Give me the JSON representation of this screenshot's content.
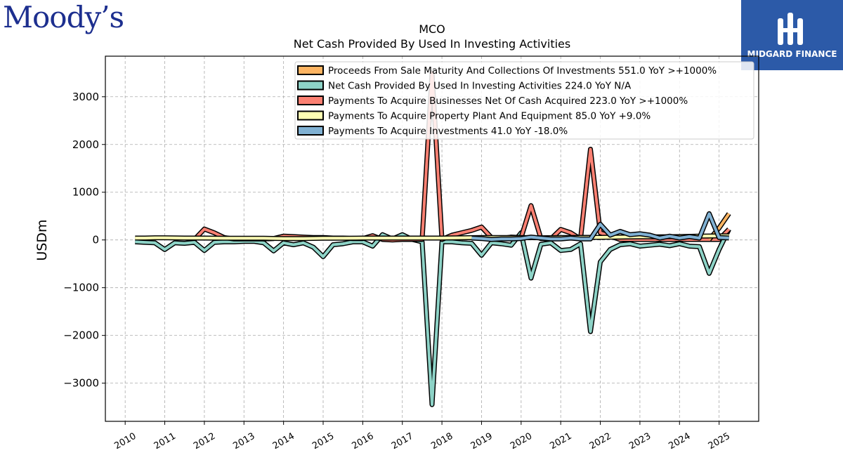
{
  "brand": {
    "left_logo": "Moody’s",
    "right_logo": "MIDGARD FINANCE"
  },
  "colors": {
    "proceeds": "#fdb462",
    "net_cash": "#8dd3c7",
    "acquire_businesses": "#fb8072",
    "ppe": "#ffffb3",
    "investments": "#80b1d3"
  },
  "chart_data": {
    "type": "line",
    "title": "MCO",
    "subtitle": "Net Cash Provided By Used In Investing Activities",
    "ylabel": "USDm",
    "xlabel": "",
    "ylim": [
      -3800,
      3850
    ],
    "xlim": [
      2009.5,
      2026.0
    ],
    "yticks": [
      -3000,
      -2000,
      -1000,
      0,
      1000,
      2000,
      3000
    ],
    "ytick_labels": [
      "−3000",
      "−2000",
      "−1000",
      "0",
      "1000",
      "2000",
      "3000"
    ],
    "xticks": [
      2010,
      2011,
      2012,
      2013,
      2014,
      2015,
      2016,
      2017,
      2018,
      2019,
      2020,
      2021,
      2022,
      2023,
      2024,
      2025
    ],
    "xtick_labels": [
      "2010",
      "2011",
      "2012",
      "2013",
      "2014",
      "2015",
      "2016",
      "2017",
      "2018",
      "2019",
      "2020",
      "2021",
      "2022",
      "2023",
      "2024",
      "2025"
    ],
    "grid": true,
    "legend_position": "top-right",
    "series": [
      {
        "key": "proceeds",
        "legend": "Proceeds From Sale Maturity And Collections Of Investments  551.0 YoY >+1000%",
        "x": [
          2024.75,
          2025.0,
          2025.25
        ],
        "y": [
          10,
          250,
          551
        ]
      },
      {
        "key": "net_cash",
        "legend": "Net Cash Provided By Used In Investing Activities  224.0 YoY N/A",
        "x": [
          2010.25,
          2010.5,
          2010.75,
          2011.0,
          2011.25,
          2011.5,
          2011.75,
          2012.0,
          2012.25,
          2012.5,
          2012.75,
          2013.0,
          2013.25,
          2013.5,
          2013.75,
          2014.0,
          2014.25,
          2014.5,
          2014.75,
          2015.0,
          2015.25,
          2015.5,
          2015.75,
          2016.0,
          2016.25,
          2016.5,
          2016.75,
          2017.0,
          2017.25,
          2017.5,
          2017.75,
          2018.0,
          2018.25,
          2018.5,
          2018.75,
          2019.0,
          2019.25,
          2019.5,
          2019.75,
          2020.0,
          2020.25,
          2020.5,
          2020.75,
          2021.0,
          2021.25,
          2021.5,
          2021.75,
          2022.0,
          2022.25,
          2022.5,
          2022.75,
          2023.0,
          2023.25,
          2023.5,
          2023.75,
          2024.0,
          2024.25,
          2024.5,
          2024.75,
          2025.0,
          2025.25
        ],
        "y": [
          -40,
          -50,
          -60,
          -200,
          -60,
          -70,
          -50,
          -220,
          -50,
          -40,
          -40,
          -30,
          -30,
          -60,
          -230,
          -60,
          -100,
          -60,
          -150,
          -350,
          -100,
          -80,
          -40,
          -40,
          -130,
          110,
          20,
          110,
          10,
          -40,
          -3450,
          -40,
          -40,
          -60,
          -70,
          -320,
          -60,
          -80,
          -110,
          150,
          -800,
          -90,
          -60,
          -220,
          -200,
          -80,
          -1920,
          -460,
          -200,
          -100,
          -80,
          -130,
          -110,
          -90,
          -120,
          -80,
          -130,
          -140,
          -700,
          -200,
          224
        ]
      },
      {
        "key": "acquire_businesses",
        "legend": "Payments To Acquire Businesses Net Of Cash Acquired  223.0 YoY >+1000%",
        "x": [
          2011.75,
          2012.0,
          2012.25,
          2012.5,
          2012.75,
          2013.0,
          2013.25,
          2013.5,
          2013.75,
          2014.0,
          2014.25,
          2014.5,
          2014.75,
          2015.0,
          2015.25,
          2015.5,
          2015.75,
          2016.0,
          2016.25,
          2016.5,
          2016.75,
          2017.0,
          2017.25,
          2017.5,
          2017.75,
          2018.0,
          2018.25,
          2018.5,
          2018.75,
          2019.0,
          2019.25,
          2019.5,
          2019.75,
          2020.0,
          2020.25,
          2020.5,
          2020.75,
          2021.0,
          2021.25,
          2021.5,
          2021.75,
          2022.0,
          2022.25,
          2022.5,
          2022.75,
          2023.0,
          2023.25,
          2023.5,
          2023.75,
          2024.0,
          2024.25,
          2024.5,
          2024.75,
          2025.0,
          2025.25
        ],
        "y": [
          10,
          230,
          150,
          50,
          20,
          20,
          20,
          20,
          30,
          80,
          70,
          60,
          50,
          50,
          40,
          40,
          30,
          30,
          90,
          10,
          0,
          10,
          10,
          10,
          3500,
          10,
          100,
          150,
          200,
          270,
          50,
          30,
          60,
          50,
          720,
          30,
          20,
          220,
          150,
          20,
          1900,
          150,
          80,
          10,
          10,
          10,
          10,
          10,
          10,
          10,
          10,
          10,
          10,
          10,
          223
        ]
      },
      {
        "key": "ppe",
        "legend": "Payments To Acquire Property Plant And Equipment  85.0 YoY +9.0%",
        "x": [
          2010.25,
          2010.5,
          2010.75,
          2011.0,
          2011.5,
          2012.0,
          2012.5,
          2013.0,
          2013.5,
          2014.0,
          2014.5,
          2015.0,
          2015.5,
          2016.0,
          2016.5,
          2017.0,
          2017.5,
          2018.0,
          2018.5,
          2019.0,
          2019.5,
          2020.0,
          2020.5,
          2021.0,
          2021.5,
          2022.0,
          2022.5,
          2023.0,
          2023.5,
          2024.0,
          2024.5,
          2025.0,
          2025.25
        ],
        "y": [
          40,
          40,
          45,
          45,
          40,
          40,
          35,
          35,
          35,
          30,
          30,
          35,
          35,
          40,
          40,
          40,
          40,
          40,
          45,
          50,
          50,
          50,
          45,
          50,
          55,
          55,
          60,
          65,
          65,
          70,
          80,
          85,
          85
        ]
      },
      {
        "key": "investments",
        "legend": "Payments To Acquire Investments  41.0 YoY -18.0%",
        "x": [
          2018.75,
          2019.0,
          2019.25,
          2019.5,
          2019.75,
          2020.0,
          2020.25,
          2020.5,
          2020.75,
          2021.0,
          2021.25,
          2021.5,
          2021.75,
          2022.0,
          2022.25,
          2022.5,
          2022.75,
          2023.0,
          2023.25,
          2023.5,
          2023.75,
          2024.0,
          2024.25,
          2024.5,
          2024.75,
          2025.0,
          2025.25
        ],
        "y": [
          40,
          30,
          10,
          20,
          20,
          30,
          60,
          40,
          20,
          20,
          40,
          20,
          20,
          330,
          100,
          180,
          110,
          130,
          100,
          40,
          80,
          40,
          70,
          40,
          550,
          50,
          41
        ]
      }
    ]
  }
}
